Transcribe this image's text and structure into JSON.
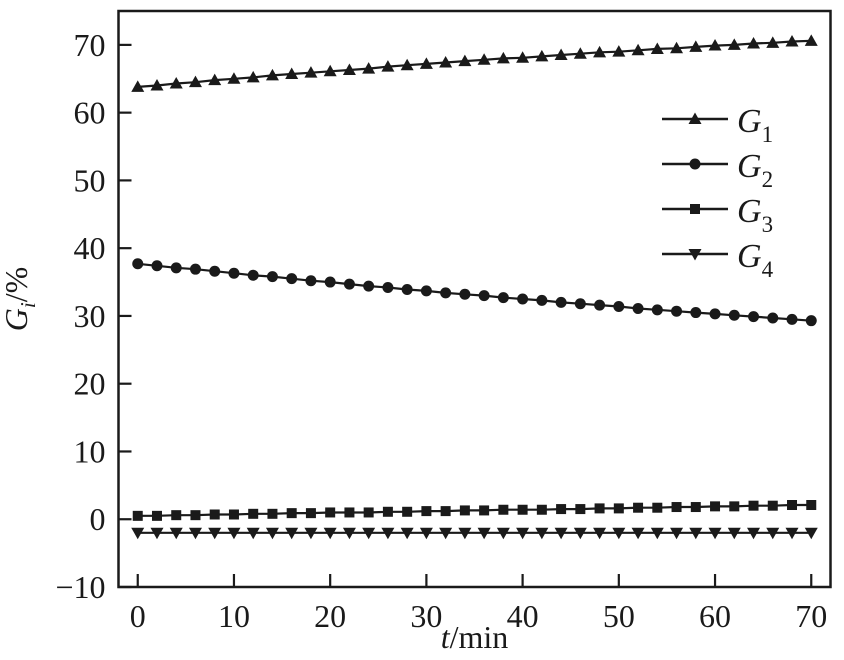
{
  "figure": {
    "background": "#ffffff"
  },
  "chart_data": {
    "type": "line",
    "title": "",
    "xlabel": {
      "italic": "t",
      "normal": "/min"
    },
    "ylabel": {
      "italic": "G",
      "sub": "i",
      "normal": "/%"
    },
    "xlim": [
      -2,
      72
    ],
    "ylim": [
      -10,
      75
    ],
    "xticks": [
      0,
      10,
      20,
      30,
      40,
      50,
      60,
      70
    ],
    "yticks": [
      -10,
      0,
      10,
      20,
      30,
      40,
      50,
      60,
      70
    ],
    "grid": false,
    "line_color": "#1a1a1a",
    "legend": {
      "position": "center-right",
      "frame": false
    },
    "x": [
      0,
      2,
      4,
      6,
      8,
      10,
      12,
      14,
      16,
      18,
      20,
      22,
      24,
      26,
      28,
      30,
      32,
      34,
      36,
      38,
      40,
      42,
      44,
      46,
      48,
      50,
      52,
      54,
      56,
      58,
      60,
      62,
      64,
      66,
      68,
      70
    ],
    "series": [
      {
        "name": "G1",
        "label": {
          "italic": "G",
          "sub": "1"
        },
        "marker": "triangle-up",
        "values": [
          63.8,
          64.0,
          64.3,
          64.5,
          64.8,
          65.0,
          65.2,
          65.5,
          65.7,
          65.9,
          66.1,
          66.3,
          66.5,
          66.8,
          67.0,
          67.2,
          67.4,
          67.6,
          67.8,
          68.0,
          68.1,
          68.3,
          68.5,
          68.7,
          68.9,
          69.0,
          69.2,
          69.4,
          69.5,
          69.7,
          69.9,
          70.0,
          70.2,
          70.3,
          70.5,
          70.6
        ]
      },
      {
        "name": "G2",
        "label": {
          "italic": "G",
          "sub": "2"
        },
        "marker": "circle",
        "values": [
          37.7,
          37.4,
          37.1,
          36.9,
          36.6,
          36.3,
          36.0,
          35.8,
          35.5,
          35.2,
          35.0,
          34.7,
          34.4,
          34.2,
          33.9,
          33.7,
          33.4,
          33.2,
          33.0,
          32.7,
          32.5,
          32.3,
          32.0,
          31.8,
          31.6,
          31.4,
          31.1,
          30.9,
          30.7,
          30.5,
          30.3,
          30.1,
          29.9,
          29.7,
          29.5,
          29.3
        ]
      },
      {
        "name": "G3",
        "label": {
          "italic": "G",
          "sub": "3"
        },
        "marker": "square",
        "values": [
          0.5,
          0.5,
          0.6,
          0.6,
          0.7,
          0.7,
          0.8,
          0.8,
          0.9,
          0.9,
          1.0,
          1.0,
          1.0,
          1.1,
          1.1,
          1.2,
          1.2,
          1.3,
          1.3,
          1.4,
          1.4,
          1.4,
          1.5,
          1.5,
          1.6,
          1.6,
          1.7,
          1.7,
          1.8,
          1.8,
          1.9,
          1.9,
          2.0,
          2.0,
          2.1,
          2.1
        ]
      },
      {
        "name": "G4",
        "label": {
          "italic": "G",
          "sub": "4"
        },
        "marker": "triangle-down",
        "values": [
          -2.0,
          -2.0,
          -2.0,
          -2.0,
          -2.0,
          -2.0,
          -2.0,
          -2.0,
          -2.0,
          -2.0,
          -2.0,
          -2.0,
          -2.0,
          -2.0,
          -2.0,
          -2.0,
          -2.0,
          -2.0,
          -2.0,
          -2.0,
          -2.0,
          -2.0,
          -2.0,
          -2.0,
          -2.0,
          -2.0,
          -2.0,
          -2.0,
          -2.0,
          -2.0,
          -2.0,
          -2.0,
          -2.0,
          -2.0,
          -2.0,
          -2.0
        ]
      }
    ]
  }
}
